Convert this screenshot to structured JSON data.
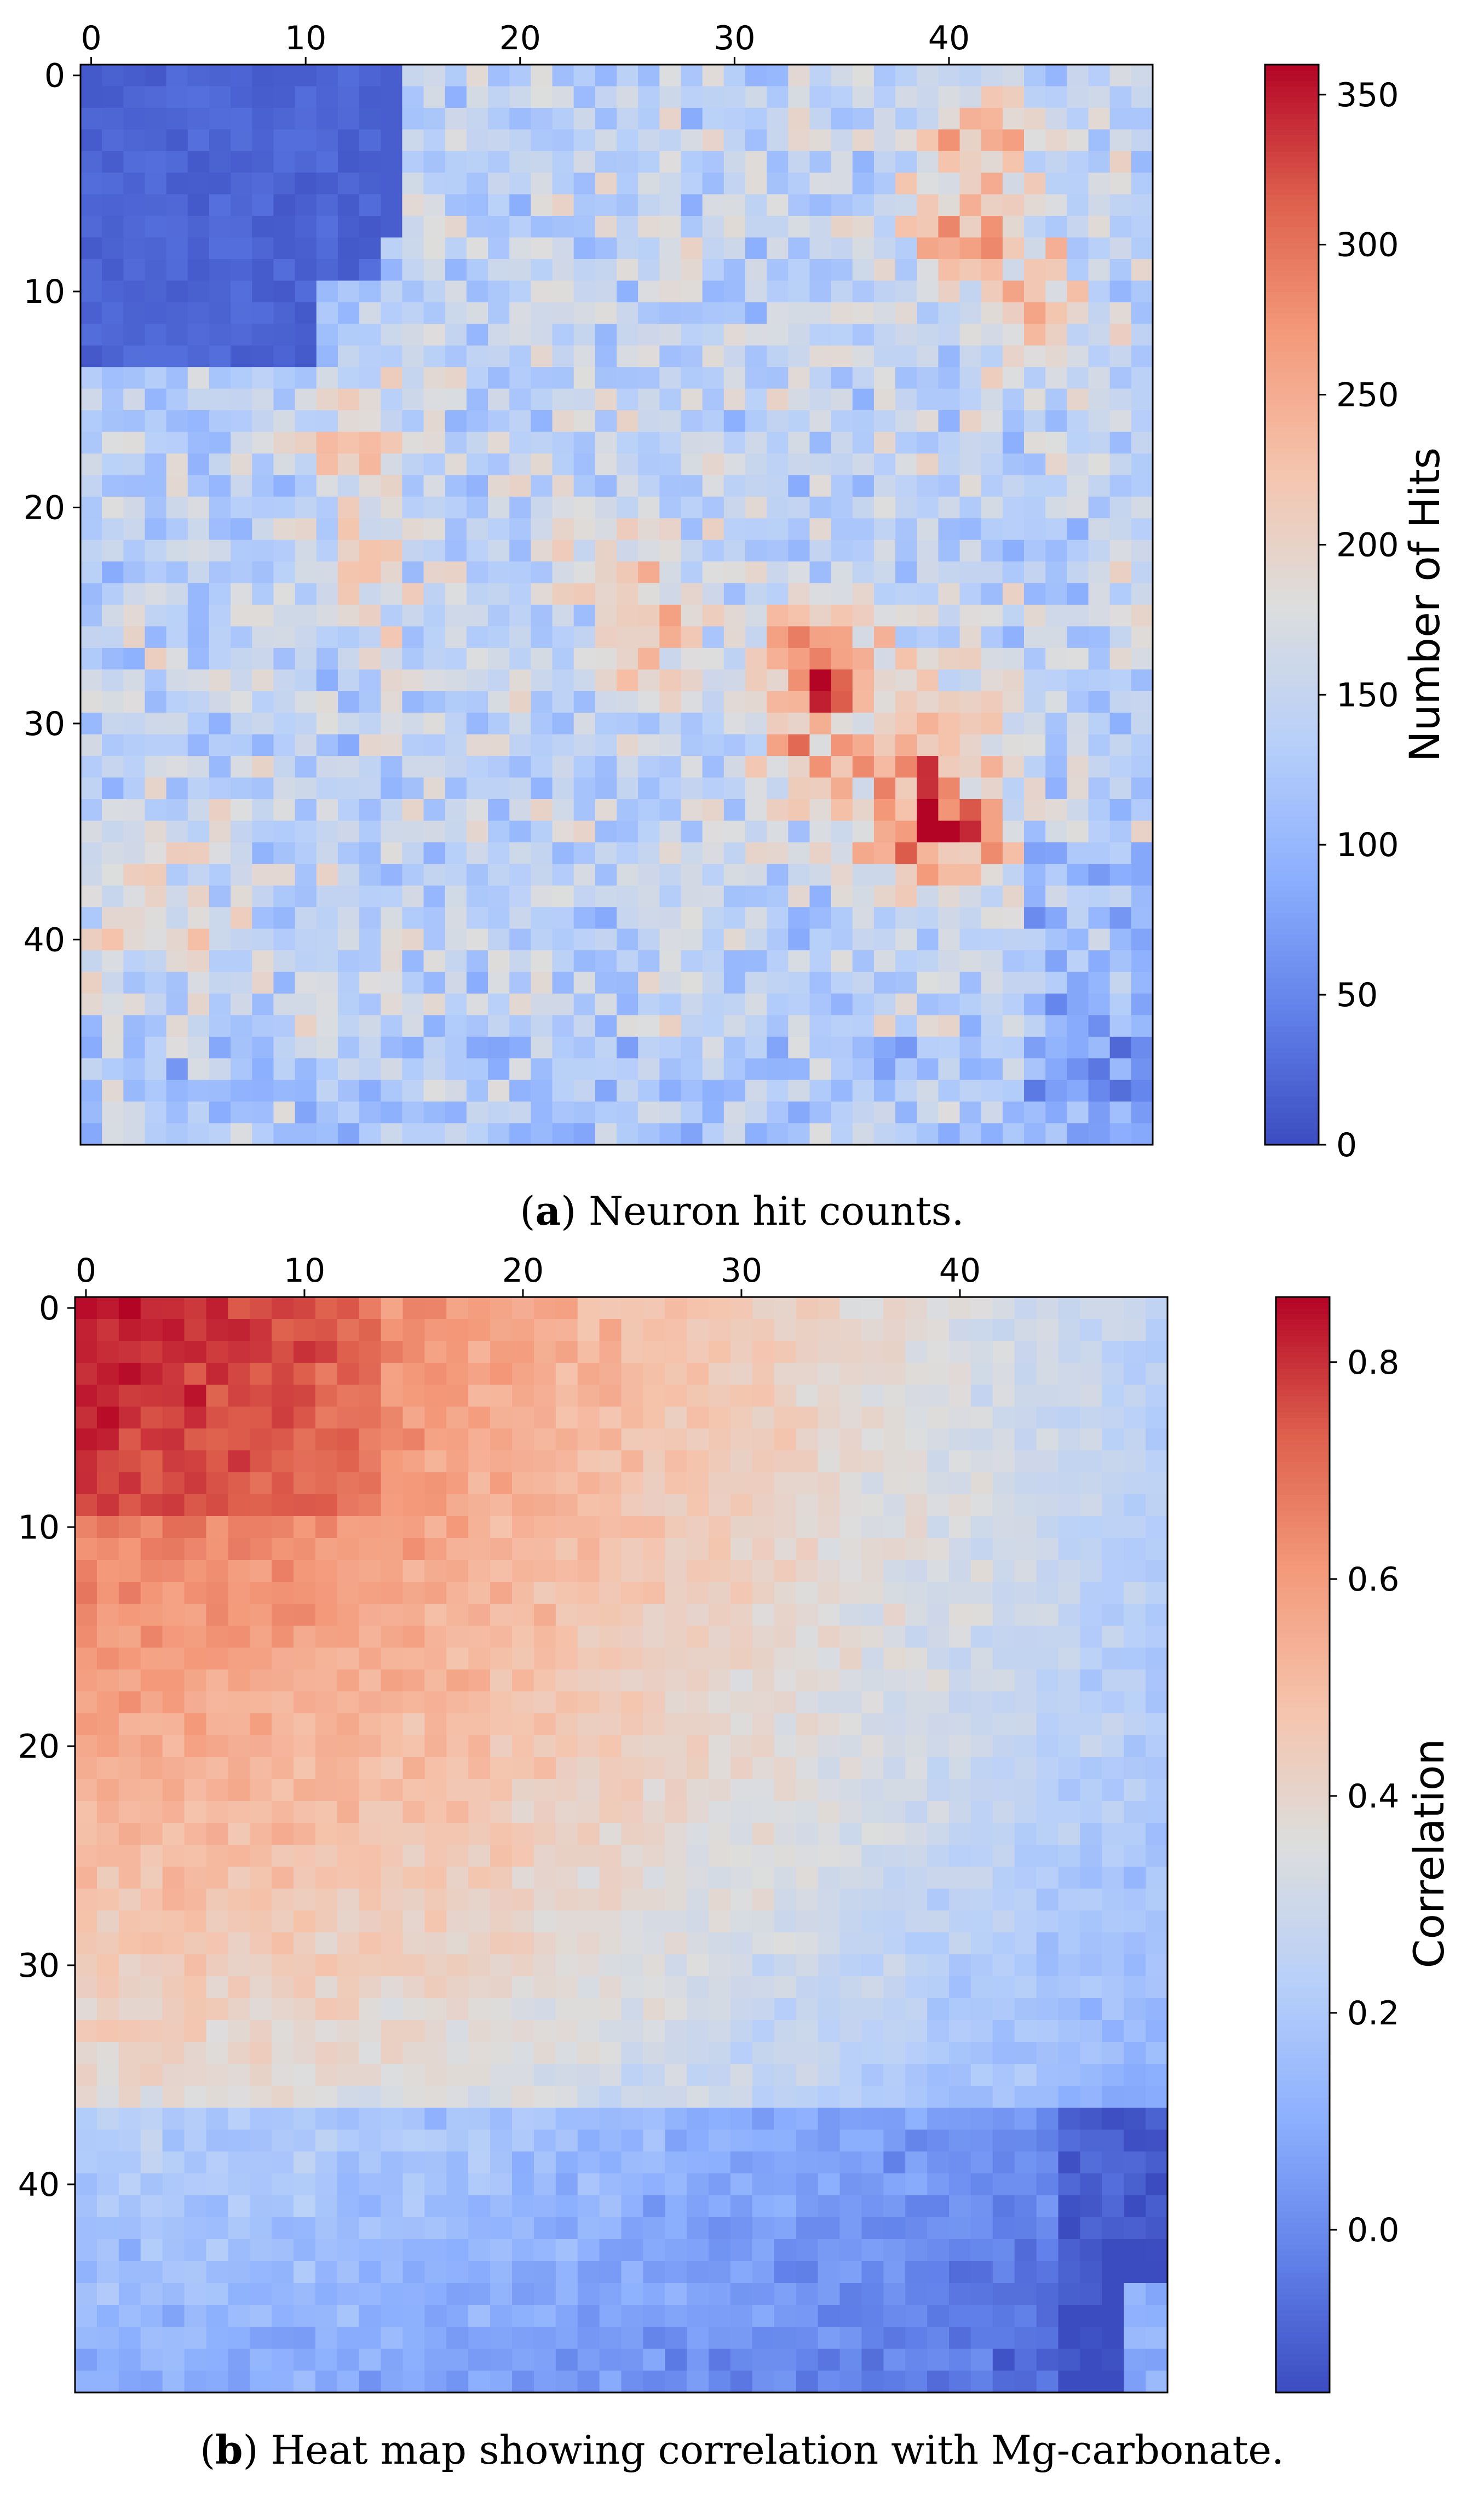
{
  "chart_data": [
    {
      "type": "heatmap",
      "grid_size": [
        50,
        50
      ],
      "xticks": [
        0,
        10,
        20,
        30,
        40
      ],
      "yticks": [
        0,
        10,
        20,
        30,
        40
      ],
      "colorbar_label": "Number of Hits",
      "colorbar_range": [
        0,
        360
      ],
      "colorbar_ticks": [
        0,
        50,
        100,
        150,
        200,
        250,
        300,
        350
      ],
      "colormap": "coolwarm",
      "caption_prefix": "(",
      "caption_letter": "a",
      "caption_text": ") Neuron hit counts.",
      "description_regions": {
        "top_left_low_hits_block": "rows 0-13, cols 0-13 near 0-30 hits",
        "hot_spots": [
          [
            26,
            34
          ],
          [
            31,
            34
          ],
          [
            35,
            40
          ],
          [
            29,
            40
          ],
          [
            7,
            42
          ],
          [
            3,
            43
          ]
        ]
      }
    },
    {
      "type": "heatmap",
      "grid_size": [
        50,
        50
      ],
      "xticks": [
        0,
        10,
        20,
        30,
        40
      ],
      "yticks": [
        0,
        10,
        20,
        30,
        40
      ],
      "colorbar_label": "Correlation",
      "colorbar_range": [
        -0.15,
        0.86
      ],
      "colorbar_ticks": [
        0.0,
        0.2,
        0.4,
        0.6,
        0.8
      ],
      "colormap": "coolwarm",
      "caption_prefix": "(",
      "caption_letter": "b",
      "caption_text": ") Heat map showing correlation with Mg-carbonate.",
      "description_regions": {
        "top_left_high_correlation": "rows 0-10, cols 0-14 near 0.7-0.85",
        "bottom_right_low": "rows 36-49 near -0.1 to 0.1"
      }
    }
  ]
}
